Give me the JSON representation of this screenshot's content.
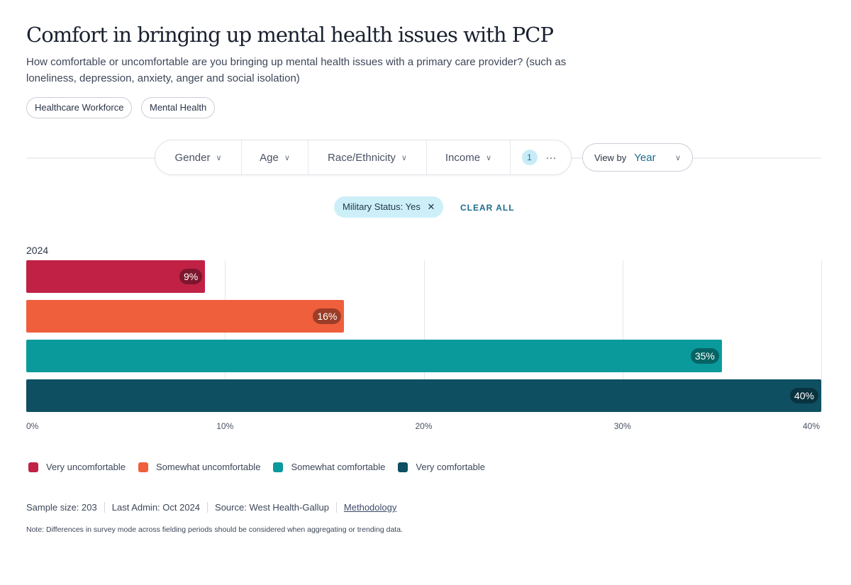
{
  "header": {
    "title": "Comfort in bringing up mental health issues  with PCP",
    "subtitle": "How comfortable or uncomfortable are you bringing up mental health issues with a primary care provider? (such as loneliness, depression, anxiety, anger and social isolation)",
    "tags": [
      "Healthcare Workforce",
      "Mental Health"
    ]
  },
  "filters": {
    "items": [
      "Gender",
      "Age",
      "Race/Ethnicity",
      "Income"
    ],
    "active_count": "1",
    "more": "···",
    "view_by_label": "View by",
    "view_by_value": "Year"
  },
  "active_filter": {
    "chip": "Military Status: Yes",
    "clear_all": "CLEAR ALL"
  },
  "chart_data": {
    "type": "bar",
    "orientation": "horizontal",
    "group": "2024",
    "categories": [
      "Very uncomfortable",
      "Somewhat uncomfortable",
      "Somewhat comfortable",
      "Very comfortable"
    ],
    "values": [
      9,
      16,
      35,
      40
    ],
    "data_labels": [
      "9%",
      "16%",
      "35%",
      "40%"
    ],
    "colors": [
      "#c02145",
      "#ef5f3c",
      "#0a9a9c",
      "#0f4f62"
    ],
    "xlim": [
      0,
      40
    ],
    "x_ticks": [
      "0%",
      "10%",
      "20%",
      "30%",
      "40%"
    ],
    "grid": true,
    "legend": "bottom-left"
  },
  "footer": {
    "sample_size": "Sample size: 203",
    "last_admin": "Last Admin: Oct 2024",
    "source": "Source: West Health-Gallup",
    "methodology": "Methodology",
    "note": "Note: Differences in survey mode across fielding periods should be considered when aggregating or trending data."
  }
}
